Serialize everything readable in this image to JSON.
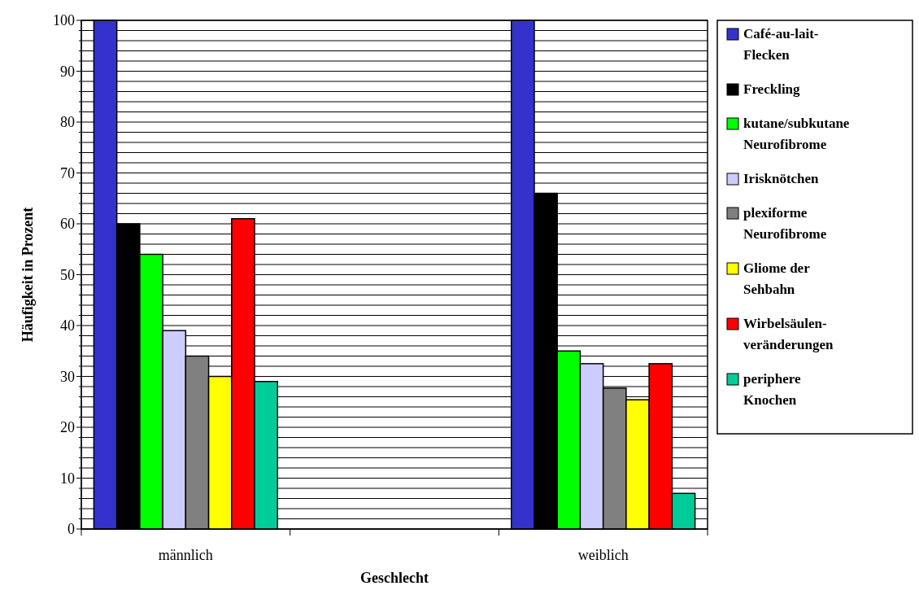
{
  "chart_data": {
    "type": "bar",
    "xlabel": "Geschlecht",
    "ylabel": "Häufigkeit in Prozent",
    "categories": [
      "männlich",
      null,
      "weiblich"
    ],
    "series": [
      {
        "name": "Café-au-lait-Flecken",
        "color": "#3333cc",
        "values": [
          100,
          null,
          100
        ]
      },
      {
        "name": "Freckling",
        "color": "#000000",
        "values": [
          60,
          null,
          66
        ]
      },
      {
        "name": "kutane/subkutane Neurofibrome",
        "color": "#00ff00",
        "values": [
          54,
          null,
          35
        ]
      },
      {
        "name": "Irisknötchen",
        "color": "#ccccff",
        "values": [
          39,
          null,
          32.5
        ]
      },
      {
        "name": "plexiforme Neurofibrome",
        "color": "#808080",
        "values": [
          34,
          null,
          27.7
        ]
      },
      {
        "name": "Gliome der Sehbahn",
        "color": "#ffff00",
        "values": [
          30,
          null,
          25.4
        ]
      },
      {
        "name": "Wirbelsäulen-veränderungen",
        "color": "#ff0000",
        "values": [
          61,
          null,
          32.5
        ]
      },
      {
        "name": "periphere Knochen",
        "color": "#00cc99",
        "values": [
          29,
          null,
          7
        ]
      }
    ],
    "ylim": [
      0,
      100
    ],
    "yticks": [
      0,
      {
        "value": 2,
        "label": null
      },
      {
        "value": 4,
        "label": null
      },
      {
        "value": 6,
        "label": null
      },
      {
        "value": 8,
        "label": null
      },
      10,
      {
        "value": 12,
        "label": null
      },
      {
        "value": 14,
        "label": null
      },
      {
        "value": 16,
        "label": null
      },
      {
        "value": 18,
        "label": null
      },
      20,
      {
        "value": 22,
        "label": null
      },
      {
        "value": 24,
        "label": null
      },
      {
        "value": 26,
        "label": null
      },
      {
        "value": 28,
        "label": null
      },
      30,
      {
        "value": 32,
        "label": null
      },
      {
        "value": 34,
        "label": null
      },
      {
        "value": 36,
        "label": null
      },
      {
        "value": 38,
        "label": null
      },
      40,
      {
        "value": 42,
        "label": null
      },
      {
        "value": 44,
        "label": null
      },
      {
        "value": 46,
        "label": null
      },
      {
        "value": 48,
        "label": null
      },
      50,
      {
        "value": 52,
        "label": null
      },
      {
        "value": 54,
        "label": null
      },
      {
        "value": 56,
        "label": null
      },
      {
        "value": 58,
        "label": null
      },
      60,
      {
        "value": 62,
        "label": null
      },
      {
        "value": 64,
        "label": null
      },
      {
        "value": 66,
        "label": null
      },
      {
        "value": 68,
        "label": null
      },
      70,
      {
        "value": 72,
        "label": null
      },
      {
        "value": 74,
        "label": null
      },
      {
        "value": 76,
        "label": null
      },
      {
        "value": 78,
        "label": null
      },
      80,
      {
        "value": 82,
        "label": null
      },
      {
        "value": 84,
        "label": null
      },
      {
        "value": 86,
        "label": null
      },
      {
        "value": 88,
        "label": null
      },
      90,
      {
        "value": 92,
        "label": null
      },
      {
        "value": 94,
        "label": null
      },
      {
        "value": 96,
        "label": null
      },
      {
        "value": 98,
        "label": null
      },
      100
    ],
    "grid": "y",
    "legend": "right"
  }
}
